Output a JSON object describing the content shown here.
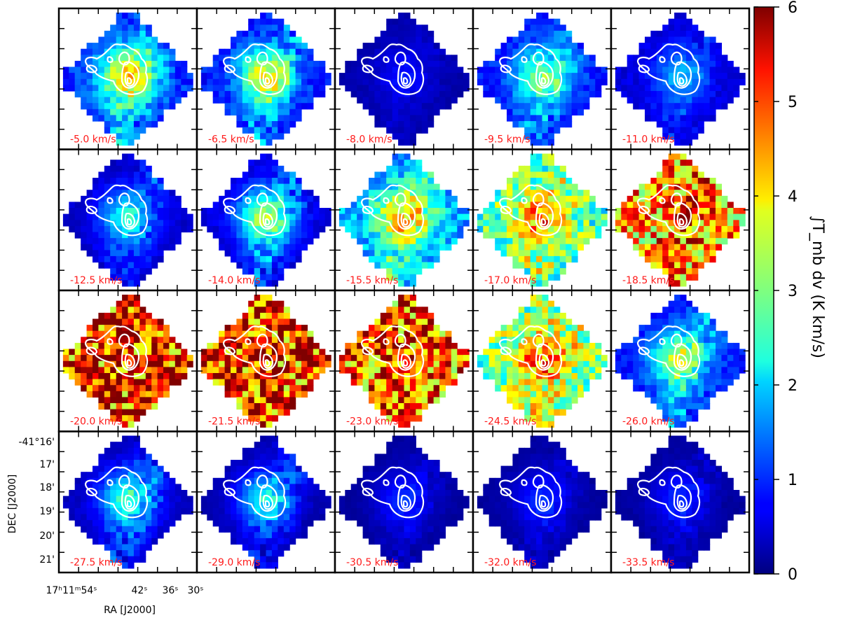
{
  "chart_data": {
    "type": "heatmap",
    "description_layout": "channel map grid, 4 rows x 5 columns",
    "channels": [
      {
        "velocity": -5.0,
        "label": "-5.0 km/s",
        "peak": 6.0,
        "bg": 1.2
      },
      {
        "velocity": -6.5,
        "label": "-6.5 km/s",
        "peak": 5.5,
        "bg": 1.0
      },
      {
        "velocity": -8.0,
        "label": "-8.0 km/s",
        "peak": 1.2,
        "bg": 0.3
      },
      {
        "velocity": -9.5,
        "label": "-9.5 km/s",
        "peak": 4.5,
        "bg": 1.0
      },
      {
        "velocity": -11.0,
        "label": "-11.0 km/s",
        "peak": 2.5,
        "bg": 0.6
      },
      {
        "velocity": -12.5,
        "label": "-12.5 km/s",
        "peak": 3.5,
        "bg": 0.5
      },
      {
        "velocity": -14.0,
        "label": "-14.0 km/s",
        "peak": 5.0,
        "bg": 0.6
      },
      {
        "velocity": -15.5,
        "label": "-15.5 km/s",
        "peak": 6.0,
        "bg": 2.0
      },
      {
        "velocity": -17.0,
        "label": "-17.0 km/s",
        "peak": 6.0,
        "bg": 3.2
      },
      {
        "velocity": -18.5,
        "label": "-18.5 km/s",
        "peak": 6.0,
        "bg": 5.0
      },
      {
        "velocity": -20.0,
        "label": "-20.0 km/s",
        "peak": 6.0,
        "bg": 6.0
      },
      {
        "velocity": -21.5,
        "label": "-21.5 km/s",
        "peak": 6.0,
        "bg": 6.0
      },
      {
        "velocity": -23.0,
        "label": "-23.0 km/s",
        "peak": 6.0,
        "bg": 5.5
      },
      {
        "velocity": -24.5,
        "label": "-24.5 km/s",
        "peak": 6.0,
        "bg": 3.5
      },
      {
        "velocity": -26.0,
        "label": "-26.0 km/s",
        "peak": 5.0,
        "bg": 1.0
      },
      {
        "velocity": -27.5,
        "label": "-27.5 km/s",
        "peak": 4.0,
        "bg": 0.4
      },
      {
        "velocity": -29.0,
        "label": "-29.0 km/s",
        "peak": 3.5,
        "bg": 0.3
      },
      {
        "velocity": -30.5,
        "label": "-30.5 km/s",
        "peak": 1.5,
        "bg": 0.2
      },
      {
        "velocity": -32.0,
        "label": "-32.0 km/s",
        "peak": 1.5,
        "bg": 0.2
      },
      {
        "velocity": -33.5,
        "label": "-33.5 km/s",
        "peak": 1.5,
        "bg": 0.2
      }
    ],
    "colorbar": {
      "colormap": "jet",
      "vmin": 0,
      "vmax": 6,
      "ticks": [
        "0",
        "1",
        "2",
        "3",
        "4",
        "5",
        "6"
      ],
      "label": "∫T_mb dv (K km/s)"
    },
    "x_axis": {
      "label": "RA [J2000]",
      "ticks": [
        "17ʰ11ᵐ54ˢ",
        "42ˢ",
        "36ˢ",
        "30ˢ"
      ]
    },
    "y_axis": {
      "label": "DEC [J2000]",
      "ticks": [
        "-41°16'",
        "17'",
        "18'",
        "19'",
        "20'",
        "21'"
      ]
    },
    "contour_color": "#ffffff",
    "label_color": "#ff1a1a"
  }
}
